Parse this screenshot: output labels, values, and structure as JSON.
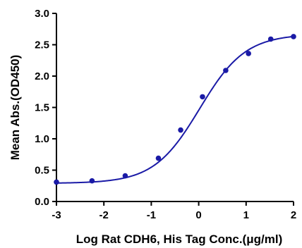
{
  "chart_data": {
    "type": "scatter",
    "title": "",
    "xlabel": "Log Rat CDH6, His Tag Conc.(μg/ml)",
    "ylabel": "Mean Abs.(OD450)",
    "xlim": [
      -3,
      2
    ],
    "ylim": [
      0.0,
      3.0
    ],
    "x_ticks": [
      -3,
      -2,
      -1,
      0,
      1,
      2
    ],
    "x_tick_labels": [
      "-3",
      "-2",
      "-1",
      "0",
      "1",
      "2"
    ],
    "y_ticks": [
      0.0,
      0.5,
      1.0,
      1.5,
      2.0,
      2.5,
      3.0
    ],
    "y_tick_labels": [
      "0.0",
      "0.5",
      "1.0",
      "1.5",
      "2.0",
      "2.5",
      "3.0"
    ],
    "grid": false,
    "legend": "none",
    "series": [
      {
        "color": "#1a1aa6",
        "marker": "circle",
        "points": [
          {
            "x": -3.0,
            "y": 0.31
          },
          {
            "x": -2.25,
            "y": 0.33
          },
          {
            "x": -1.55,
            "y": 0.41
          },
          {
            "x": -0.85,
            "y": 0.69
          },
          {
            "x": -0.38,
            "y": 1.14
          },
          {
            "x": 0.08,
            "y": 1.67
          },
          {
            "x": 0.57,
            "y": 2.09
          },
          {
            "x": 1.05,
            "y": 2.36
          },
          {
            "x": 1.52,
            "y": 2.59
          },
          {
            "x": 2.0,
            "y": 2.63
          }
        ],
        "fit": {
          "model": "4PL",
          "bottom": 0.29,
          "top": 2.67,
          "logEC50": 0.02,
          "hill": 0.9
        }
      }
    ]
  }
}
